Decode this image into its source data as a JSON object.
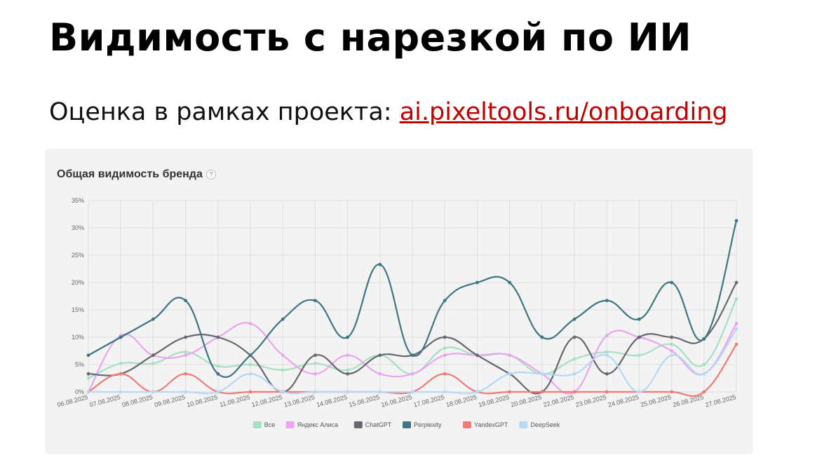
{
  "slide": {
    "title": "Видимость с нарезкой по ИИ",
    "subtitle_prefix": "Оценка в рамках проекта: ",
    "subtitle_link": "ai.pixeltools.ru/onboarding"
  },
  "card": {
    "title": "Общая видимость бренда",
    "help_icon": "?"
  },
  "chart_data": {
    "type": "line",
    "title": "Общая видимость бренда",
    "xlabel": "",
    "ylabel": "",
    "ylim": [
      0,
      35
    ],
    "yticks": [
      "0%",
      "5%",
      "10%",
      "15%",
      "20%",
      "25%",
      "30%",
      "35%"
    ],
    "grid": true,
    "legend_position": "bottom",
    "categories": [
      "06.08.2025",
      "07.08.2025",
      "08.08.2025",
      "09.08.2025",
      "10.08.2025",
      "11.08.2025",
      "12.08.2025",
      "13.08.2025",
      "14.08.2025",
      "15.08.2025",
      "16.08.2025",
      "17.08.2025",
      "18.08.2025",
      "19.08.2025",
      "20.08.2025",
      "22.08.2025",
      "23.08.2025",
      "24.08.2025",
      "25.08.2025",
      "26.08.2025",
      "27.08.2025"
    ],
    "series": [
      {
        "name": "Все",
        "color": "#a8dfc3",
        "values": [
          2.5,
          5.2,
          5.2,
          7.3,
          4.7,
          5.0,
          4.0,
          5.2,
          4.0,
          6.7,
          3.3,
          8.0,
          6.7,
          6.7,
          3.3,
          6.0,
          7.3,
          6.7,
          8.7,
          5.0,
          17.0
        ]
      },
      {
        "name": "Яндекс Алиса",
        "color": "#e9a5f0",
        "values": [
          0,
          10.3,
          6.7,
          6.7,
          10.0,
          12.5,
          6.7,
          3.3,
          6.7,
          3.3,
          3.3,
          6.7,
          6.7,
          6.7,
          3.3,
          0,
          10.3,
          10.0,
          7.5,
          3.3,
          12.5
        ]
      },
      {
        "name": "ChatGPT",
        "color": "#666870",
        "values": [
          3.3,
          3.3,
          6.7,
          10.0,
          10.0,
          6.7,
          0,
          6.7,
          3.3,
          6.7,
          6.7,
          10.0,
          6.7,
          3.3,
          0,
          10.0,
          3.3,
          10.0,
          10.0,
          9.7,
          20.0
        ]
      },
      {
        "name": "Perplexity",
        "color": "#3d7582",
        "values": [
          6.7,
          10.0,
          13.3,
          16.7,
          3.3,
          6.7,
          13.3,
          16.7,
          10.0,
          23.3,
          6.7,
          16.7,
          20.0,
          20.0,
          10.0,
          13.3,
          16.7,
          13.3,
          20.0,
          9.7,
          31.3
        ]
      },
      {
        "name": "YandexGPT",
        "color": "#ef7b74",
        "values": [
          0,
          3.3,
          0,
          3.3,
          0,
          0,
          0,
          0,
          0,
          0,
          0,
          3.3,
          0,
          0,
          0,
          0,
          0,
          0,
          0,
          0,
          8.7
        ]
      },
      {
        "name": "DeepSeek",
        "color": "#b5d9f5",
        "values": [
          0,
          0,
          0,
          0,
          0,
          3.3,
          0,
          0,
          0,
          0,
          0,
          0,
          0,
          3.3,
          3.3,
          3.3,
          6.7,
          0,
          6.7,
          3.3,
          11.5
        ]
      }
    ]
  }
}
